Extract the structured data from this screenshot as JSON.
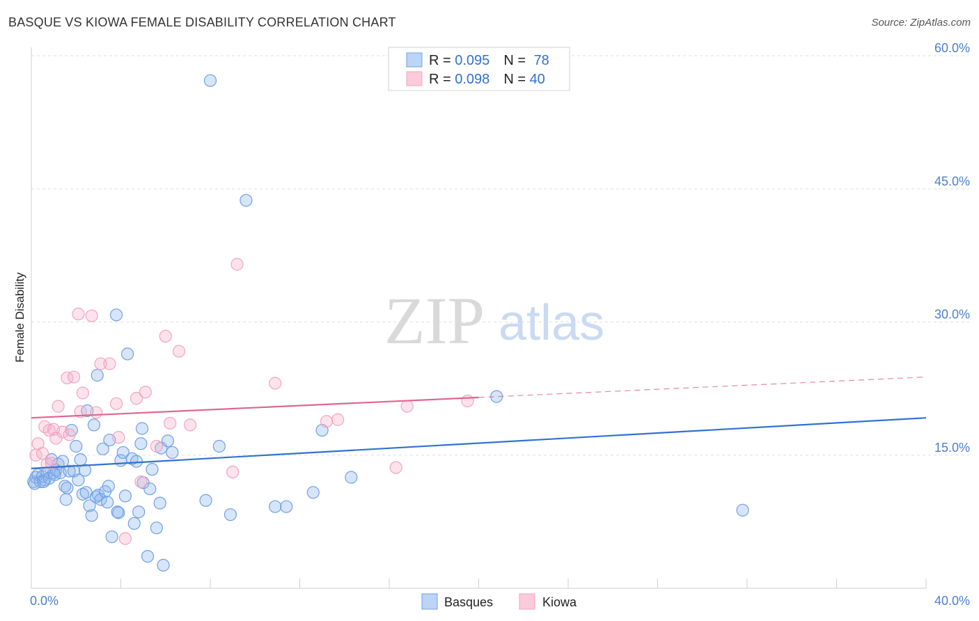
{
  "title": "BASQUE VS KIOWA FEMALE DISABILITY CORRELATION CHART",
  "source": "Source: ZipAtlas.com",
  "watermark": {
    "zip": "ZIP",
    "atlas": "atlas"
  },
  "chart_data": {
    "type": "scatter",
    "ylabel": "Female Disability",
    "xlim": [
      0,
      40
    ],
    "ylim": [
      0,
      60
    ],
    "x_tick_labels": [
      {
        "value": 0,
        "label": "0.0%"
      },
      {
        "value": 40,
        "label": "40.0%"
      }
    ],
    "y_tick_labels": [
      {
        "value": 15,
        "label": "15.0%"
      },
      {
        "value": 30,
        "label": "30.0%"
      },
      {
        "value": 45,
        "label": "45.0%"
      },
      {
        "value": 60,
        "label": "60.0%"
      }
    ],
    "legend_stats": [
      {
        "r_label": "R = ",
        "r_value": "0.095",
        "n_label": "N = ",
        "n_value": "78"
      },
      {
        "r_label": "R = ",
        "r_value": "0.098",
        "n_label": "N = ",
        "n_value": "40"
      }
    ],
    "series": [
      {
        "name": "Basques",
        "color": "#6fa0e6",
        "line_color": "#2f72d0",
        "trend": {
          "x0": 0,
          "y0": 13.5,
          "x1": 40,
          "y1": 19.2
        },
        "points": [
          [
            0.1,
            12.0
          ],
          [
            0.2,
            12.5
          ],
          [
            0.3,
            12.8
          ],
          [
            0.4,
            12.0
          ],
          [
            0.5,
            12.6
          ],
          [
            0.6,
            12.2
          ],
          [
            0.7,
            13.0
          ],
          [
            0.8,
            12.4
          ],
          [
            0.9,
            14.5
          ],
          [
            1.0,
            13.0
          ],
          [
            1.1,
            13.3
          ],
          [
            1.2,
            14.0
          ],
          [
            1.3,
            13.0
          ],
          [
            1.4,
            14.3
          ],
          [
            1.5,
            11.5
          ],
          [
            1.6,
            11.3
          ],
          [
            1.7,
            13.2
          ],
          [
            1.8,
            17.8
          ],
          [
            1.9,
            13.2
          ],
          [
            2.0,
            16.0
          ],
          [
            2.1,
            12.2
          ],
          [
            2.2,
            14.5
          ],
          [
            2.3,
            10.6
          ],
          [
            2.4,
            13.3
          ],
          [
            2.5,
            20.0
          ],
          [
            2.6,
            9.3
          ],
          [
            2.7,
            8.2
          ],
          [
            2.8,
            18.4
          ],
          [
            2.9,
            10.3
          ],
          [
            3.0,
            10.5
          ],
          [
            3.1,
            10.0
          ],
          [
            3.2,
            15.7
          ],
          [
            3.3,
            10.9
          ],
          [
            3.4,
            9.7
          ],
          [
            3.5,
            16.7
          ],
          [
            3.6,
            5.8
          ],
          [
            3.8,
            30.8
          ],
          [
            3.9,
            8.5
          ],
          [
            4.0,
            14.4
          ],
          [
            4.1,
            15.3
          ],
          [
            4.2,
            10.4
          ],
          [
            4.3,
            26.4
          ],
          [
            4.5,
            14.6
          ],
          [
            4.6,
            7.3
          ],
          [
            4.7,
            14.3
          ],
          [
            4.8,
            8.6
          ],
          [
            4.9,
            16.3
          ],
          [
            5.0,
            11.9
          ],
          [
            5.2,
            3.6
          ],
          [
            5.3,
            11.2
          ],
          [
            5.4,
            13.4
          ],
          [
            5.6,
            6.8
          ],
          [
            5.8,
            15.8
          ],
          [
            5.9,
            2.6
          ],
          [
            6.1,
            16.6
          ],
          [
            6.3,
            15.3
          ],
          [
            7.8,
            9.9
          ],
          [
            8.0,
            57.2
          ],
          [
            8.4,
            16.0
          ],
          [
            8.9,
            8.3
          ],
          [
            9.6,
            43.7
          ],
          [
            10.9,
            9.2
          ],
          [
            11.4,
            9.2
          ],
          [
            12.6,
            10.8
          ],
          [
            13.0,
            17.8
          ],
          [
            14.3,
            12.5
          ],
          [
            20.8,
            21.6
          ],
          [
            31.8,
            8.8
          ],
          [
            0.15,
            11.8
          ],
          [
            1.05,
            12.8
          ],
          [
            2.45,
            10.8
          ],
          [
            2.95,
            24.0
          ],
          [
            3.45,
            11.5
          ],
          [
            4.95,
            18.0
          ],
          [
            0.55,
            12.0
          ],
          [
            1.55,
            10.0
          ],
          [
            5.75,
            9.6
          ],
          [
            3.85,
            8.6
          ]
        ]
      },
      {
        "name": "Kiowa",
        "color": "#f4a3bd",
        "line_color": "#e0668e",
        "trend": {
          "x0": 0,
          "y0": 19.2,
          "x1": 20,
          "y1": 21.5
        },
        "trend_dashed": {
          "x0": 20,
          "y0": 21.5,
          "x1": 40,
          "y1": 23.8
        },
        "points": [
          [
            0.2,
            15.0
          ],
          [
            0.3,
            16.3
          ],
          [
            0.5,
            15.2
          ],
          [
            0.6,
            18.2
          ],
          [
            0.7,
            14.0
          ],
          [
            0.8,
            17.8
          ],
          [
            1.0,
            17.9
          ],
          [
            1.1,
            16.9
          ],
          [
            1.2,
            20.5
          ],
          [
            1.4,
            17.6
          ],
          [
            1.6,
            23.7
          ],
          [
            1.7,
            17.3
          ],
          [
            1.9,
            23.8
          ],
          [
            2.1,
            30.9
          ],
          [
            2.3,
            22.0
          ],
          [
            2.7,
            30.7
          ],
          [
            2.9,
            19.8
          ],
          [
            3.1,
            25.3
          ],
          [
            3.5,
            25.3
          ],
          [
            3.8,
            20.8
          ],
          [
            4.2,
            5.6
          ],
          [
            4.7,
            21.4
          ],
          [
            4.9,
            12.0
          ],
          [
            5.1,
            22.1
          ],
          [
            5.6,
            16.0
          ],
          [
            6.0,
            28.4
          ],
          [
            6.2,
            18.6
          ],
          [
            6.6,
            26.7
          ],
          [
            7.1,
            18.4
          ],
          [
            9.0,
            13.1
          ],
          [
            9.2,
            36.5
          ],
          [
            10.9,
            23.1
          ],
          [
            13.2,
            18.8
          ],
          [
            13.7,
            19.0
          ],
          [
            16.3,
            13.6
          ],
          [
            16.8,
            20.5
          ],
          [
            19.5,
            21.1
          ],
          [
            0.9,
            14.1
          ],
          [
            2.2,
            19.9
          ],
          [
            3.9,
            17.0
          ]
        ]
      }
    ]
  }
}
